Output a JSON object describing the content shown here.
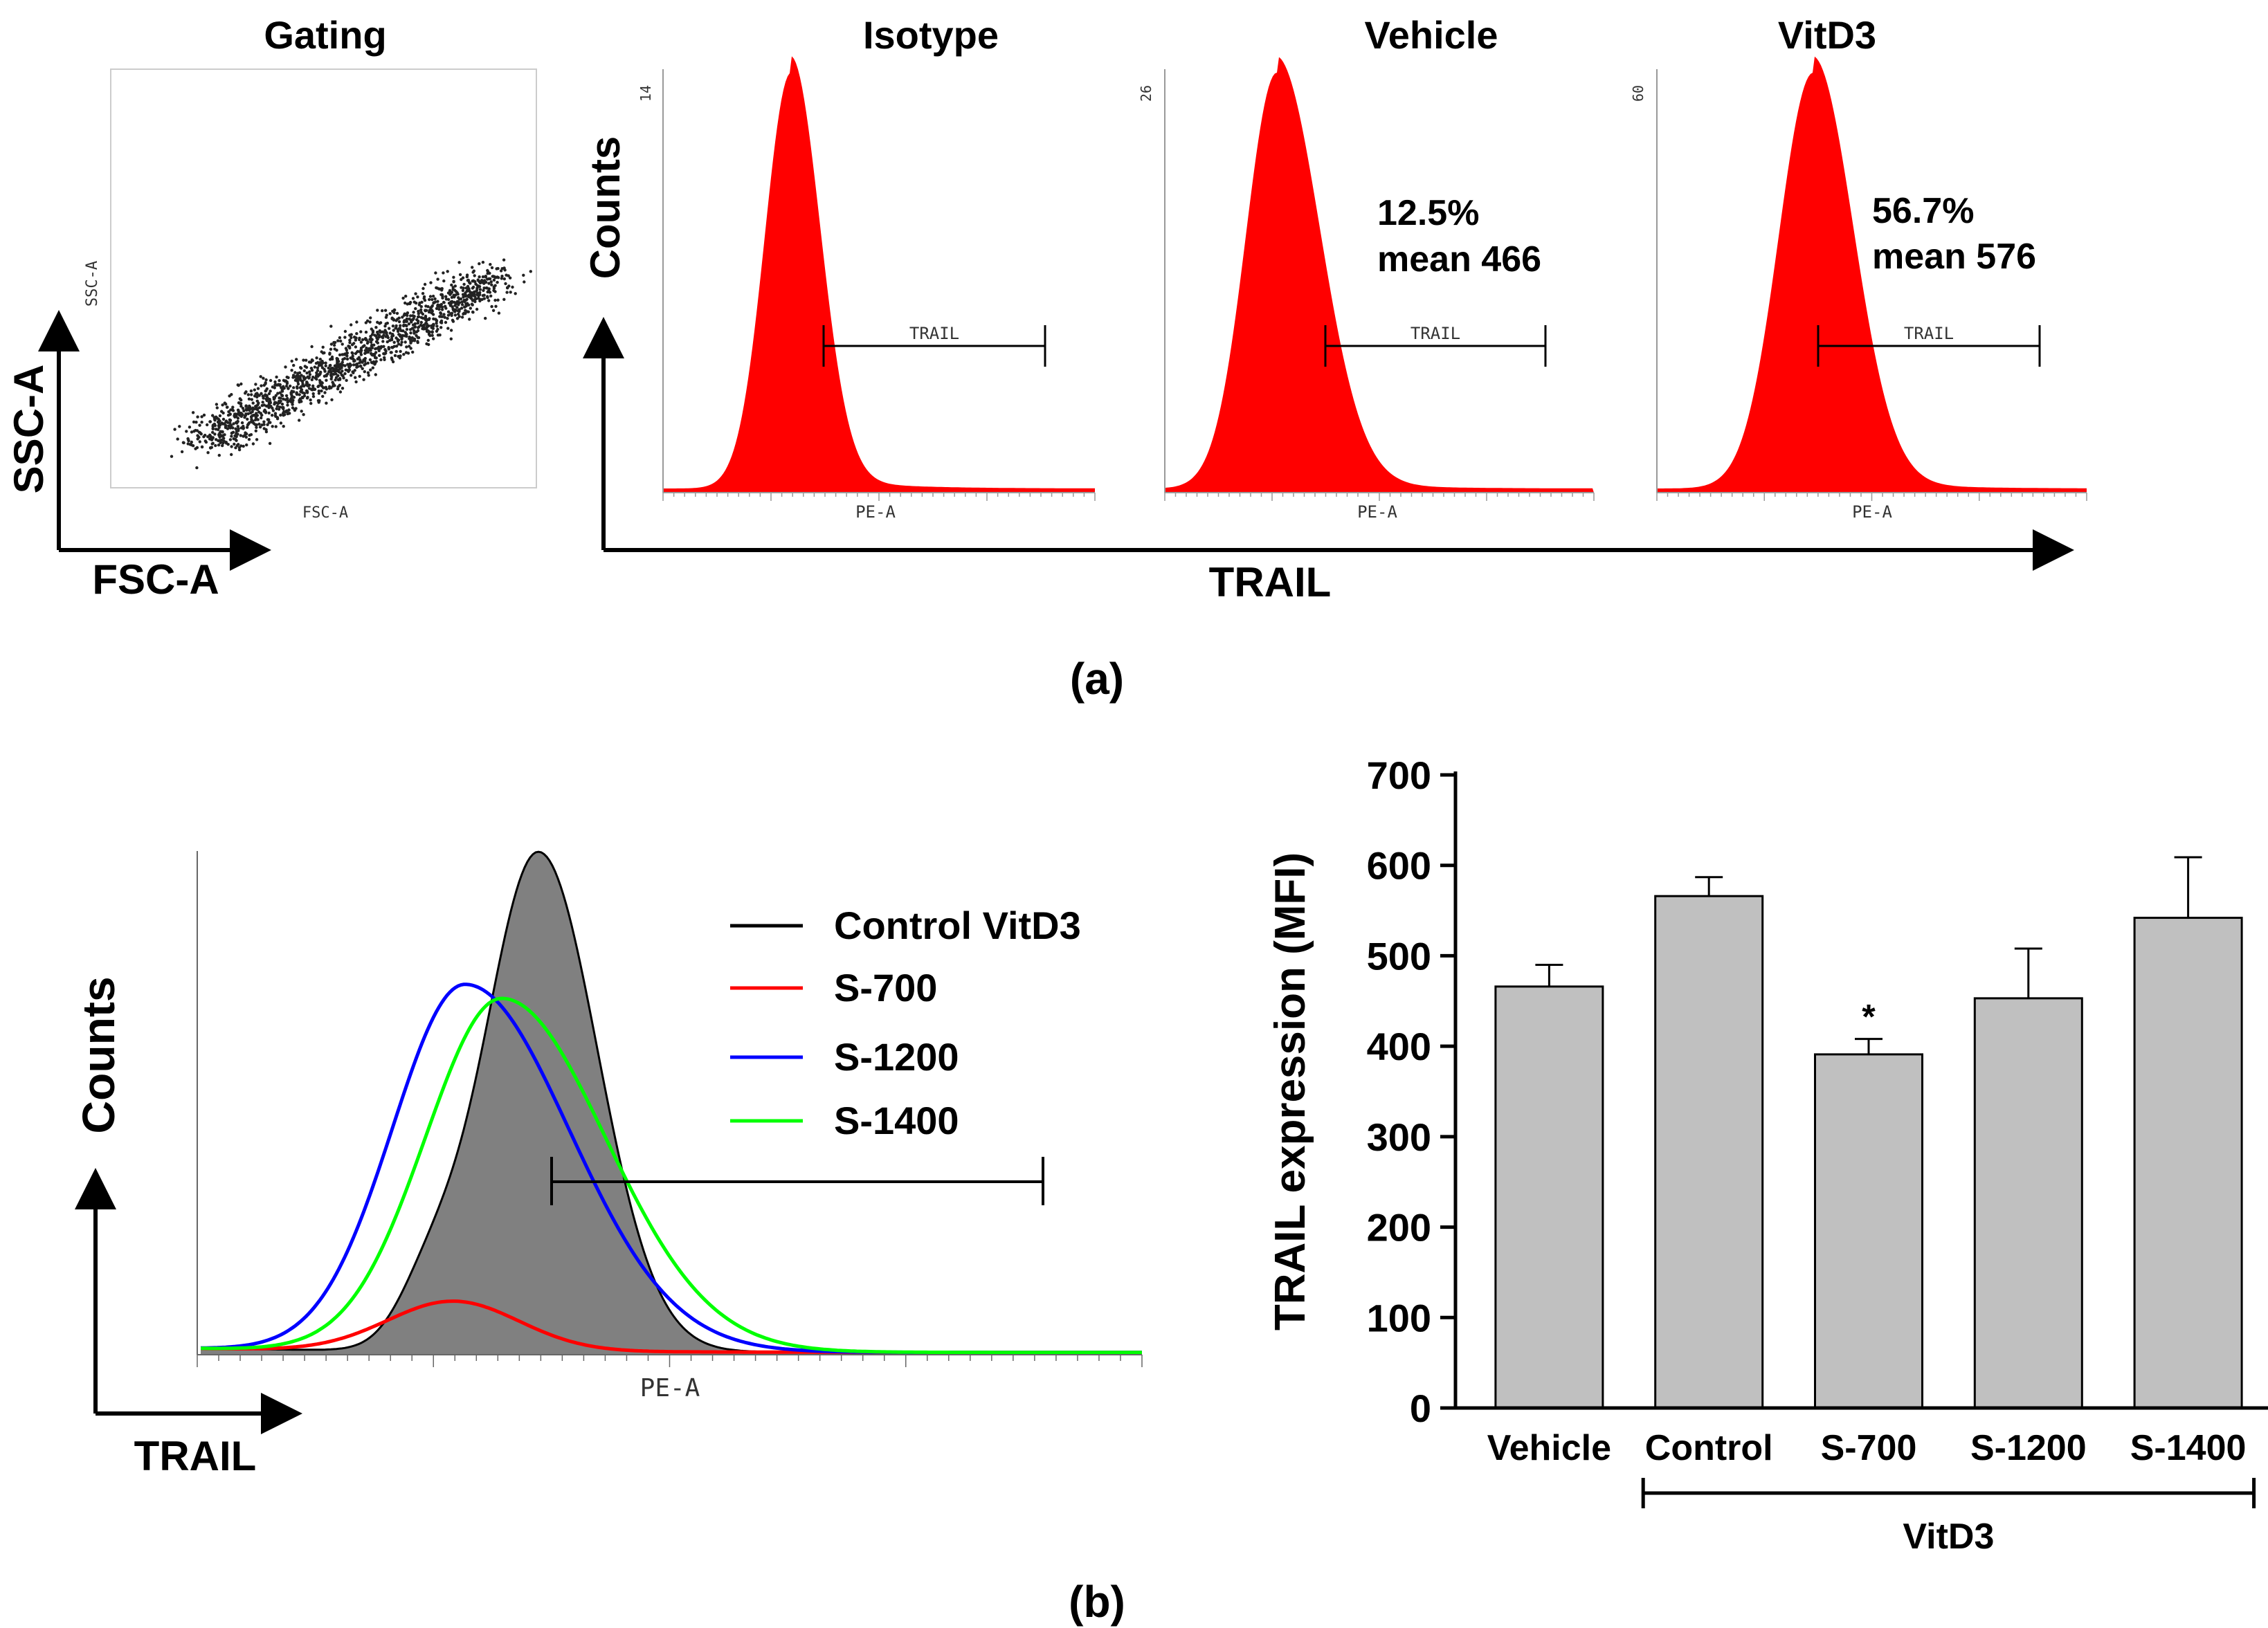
{
  "panel_a": {
    "label": "(a)",
    "gating": {
      "title": "Gating",
      "y_axis": "SSC-A",
      "x_axis": "FSC-A",
      "inner_x": "FSC-A",
      "inner_y": "SSC-A"
    },
    "histograms_y_axis": "Counts",
    "histograms_x_axis": "TRAIL",
    "histograms": [
      {
        "title": "Isotype",
        "ymax_label": "14",
        "xlabel": "PE-A",
        "gate": "TRAIL",
        "percent": "",
        "mean": ""
      },
      {
        "title": "Vehicle",
        "ymax_label": "26",
        "xlabel": "PE-A",
        "gate": "TRAIL",
        "percent": "12.5%",
        "mean": "mean 466"
      },
      {
        "title": "VitD3",
        "ymax_label": "60",
        "xlabel": "PE-A",
        "gate": "TRAIL",
        "percent": "56.7%",
        "mean": "mean 576"
      }
    ],
    "fill_color": "#ff0000"
  },
  "panel_b": {
    "label": "(b)",
    "overlay": {
      "y_axis": "Counts",
      "x_axis": "TRAIL",
      "inner_x": "PE-A",
      "legend": [
        {
          "name": "Control VitD3",
          "color": "#000000"
        },
        {
          "name": "S-700",
          "color": "#ff0000"
        },
        {
          "name": "S-1200",
          "color": "#0000ff"
        },
        {
          "name": "S-1400",
          "color": "#00ff00"
        }
      ],
      "fill_color": "#808080"
    }
  },
  "chart_data": [
    {
      "type": "bar",
      "ylabel": "TRAIL expression (MFI)",
      "categories": [
        "Vehicle",
        "Control",
        "S-700",
        "S-1200",
        "S-1400"
      ],
      "values": [
        466,
        566,
        391,
        453,
        542
      ],
      "errors": [
        24,
        21,
        17,
        55,
        67
      ],
      "significance": [
        "",
        "",
        "*",
        "",
        ""
      ],
      "group_label": "VitD3",
      "ylim": [
        0,
        700
      ],
      "yticks": [
        0,
        100,
        200,
        300,
        400,
        500,
        600,
        700
      ],
      "bar_color": "#c0c0c0"
    }
  ]
}
